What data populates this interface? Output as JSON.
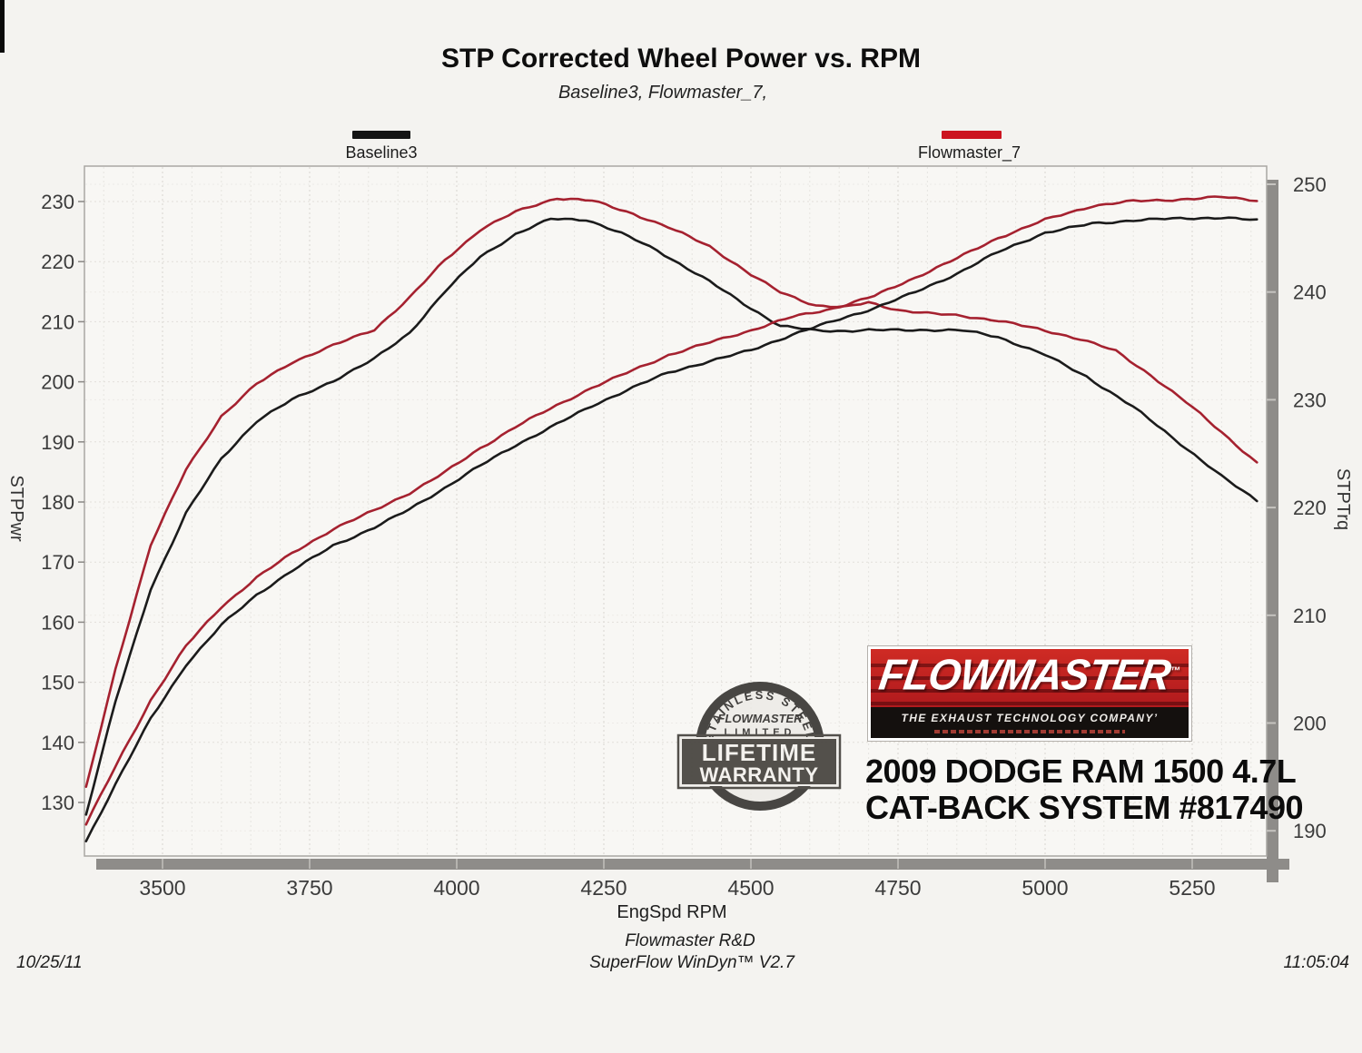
{
  "title": "STP Corrected Wheel Power vs. RPM",
  "subtitle": "Baseline3, Flowmaster_7,",
  "legend": {
    "items": [
      {
        "label": "Baseline3",
        "color": "#141414"
      },
      {
        "label": "Flowmaster_7",
        "color": "#cc1420"
      }
    ]
  },
  "chart_data": {
    "type": "line",
    "title": "STP Corrected Wheel Power vs. RPM",
    "subtitle": "Baseline3, Flowmaster_7,",
    "grid": "dotted",
    "legend_position": "top",
    "x_axis": {
      "label": "EngSpd  RPM",
      "min": 3370,
      "max": 5380,
      "ticks": [
        3500,
        3750,
        4000,
        4250,
        4500,
        4750,
        5000,
        5250
      ],
      "minor_grid_step": 50
    },
    "y_left": {
      "label": "STPPwr",
      "min": 121,
      "max": 236,
      "ticks": [
        130,
        140,
        150,
        160,
        170,
        180,
        190,
        200,
        210,
        220,
        230
      ]
    },
    "y_right": {
      "label": "STPTrq",
      "min": 188,
      "max": 252,
      "ticks": [
        190,
        200,
        210,
        220,
        230,
        240,
        250
      ]
    },
    "series": [
      {
        "id": "baseline3-stptrq",
        "name": "Baseline3 (STPTrq)",
        "axis": "right",
        "color": "#1b1b1b",
        "points": [
          [
            3370,
            191.5
          ],
          [
            3420,
            202
          ],
          [
            3480,
            212.5
          ],
          [
            3540,
            219.5
          ],
          [
            3600,
            224.5
          ],
          [
            3660,
            228
          ],
          [
            3720,
            230
          ],
          [
            3790,
            231.8
          ],
          [
            3860,
            233.8
          ],
          [
            3920,
            236.2
          ],
          [
            3980,
            240
          ],
          [
            4040,
            243.3
          ],
          [
            4100,
            245.4
          ],
          [
            4160,
            246.8
          ],
          [
            4220,
            246.7
          ],
          [
            4280,
            245.4
          ],
          [
            4340,
            243.9
          ],
          [
            4430,
            241
          ],
          [
            4500,
            238.5
          ],
          [
            4550,
            236.8
          ],
          [
            4610,
            236.4
          ],
          [
            4660,
            236.4
          ],
          [
            4700,
            236.5
          ],
          [
            4750,
            236.5
          ],
          [
            4800,
            236.5
          ],
          [
            4860,
            236.4
          ],
          [
            4920,
            235.8
          ],
          [
            5000,
            234.2
          ],
          [
            5070,
            232.2
          ],
          [
            5150,
            229.3
          ],
          [
            5230,
            225.9
          ],
          [
            5300,
            222.9
          ],
          [
            5360,
            220.7
          ]
        ]
      },
      {
        "id": "flowmaster7-stptrq",
        "name": "Flowmaster_7 (STPTrq)",
        "axis": "right",
        "color": "#a5212f",
        "points": [
          [
            3370,
            194
          ],
          [
            3420,
            205
          ],
          [
            3480,
            216.5
          ],
          [
            3540,
            223.5
          ],
          [
            3600,
            228.5
          ],
          [
            3660,
            231.5
          ],
          [
            3720,
            233.5
          ],
          [
            3790,
            235
          ],
          [
            3860,
            236.5
          ],
          [
            3920,
            239.5
          ],
          [
            3980,
            243
          ],
          [
            4040,
            245.8
          ],
          [
            4100,
            247.4
          ],
          [
            4170,
            248.7
          ],
          [
            4230,
            248.5
          ],
          [
            4300,
            247.3
          ],
          [
            4360,
            246
          ],
          [
            4430,
            244.2
          ],
          [
            4500,
            241.6
          ],
          [
            4550,
            240
          ],
          [
            4610,
            238.8
          ],
          [
            4660,
            238.6
          ],
          [
            4700,
            239
          ],
          [
            4750,
            238.3
          ],
          [
            4800,
            238
          ],
          [
            4860,
            237.8
          ],
          [
            4920,
            237.4
          ],
          [
            5000,
            236.4
          ],
          [
            5060,
            235.6
          ],
          [
            5120,
            234.5
          ],
          [
            5180,
            232.3
          ],
          [
            5240,
            229.8
          ],
          [
            5300,
            227
          ],
          [
            5360,
            224.1
          ]
        ]
      },
      {
        "id": "baseline3-stppwr",
        "name": "Baseline3 (STPPwr)",
        "axis": "left",
        "color": "#1b1b1b",
        "points": [
          [
            3370,
            123.5
          ],
          [
            3420,
            133
          ],
          [
            3480,
            144
          ],
          [
            3540,
            153
          ],
          [
            3600,
            159.5
          ],
          [
            3660,
            164.5
          ],
          [
            3720,
            168.5
          ],
          [
            3790,
            172.8
          ],
          [
            3860,
            175.8
          ],
          [
            3920,
            178.8
          ],
          [
            3980,
            182.3
          ],
          [
            4040,
            186
          ],
          [
            4100,
            189.5
          ],
          [
            4170,
            193
          ],
          [
            4230,
            196
          ],
          [
            4300,
            199
          ],
          [
            4360,
            201.5
          ],
          [
            4430,
            203.5
          ],
          [
            4500,
            205.3
          ],
          [
            4570,
            207.8
          ],
          [
            4640,
            210
          ],
          [
            4710,
            212.3
          ],
          [
            4780,
            215
          ],
          [
            4850,
            218
          ],
          [
            4920,
            221.5
          ],
          [
            5000,
            224.8
          ],
          [
            5080,
            226.4
          ],
          [
            5150,
            226.9
          ],
          [
            5230,
            227.1
          ],
          [
            5300,
            227.3
          ],
          [
            5360,
            226.9
          ]
        ]
      },
      {
        "id": "flowmaster7-stppwr",
        "name": "Flowmaster_7 (STPPwr)",
        "axis": "left",
        "color": "#a5212f",
        "points": [
          [
            3370,
            126.5
          ],
          [
            3420,
            136
          ],
          [
            3480,
            147
          ],
          [
            3540,
            156
          ],
          [
            3600,
            162.5
          ],
          [
            3660,
            167.5
          ],
          [
            3720,
            171.5
          ],
          [
            3790,
            175.5
          ],
          [
            3860,
            178.5
          ],
          [
            3920,
            181.5
          ],
          [
            3980,
            185
          ],
          [
            4040,
            189
          ],
          [
            4100,
            192.5
          ],
          [
            4170,
            196
          ],
          [
            4230,
            199
          ],
          [
            4300,
            202
          ],
          [
            4360,
            204.5
          ],
          [
            4430,
            206.5
          ],
          [
            4500,
            208.5
          ],
          [
            4570,
            210.8
          ],
          [
            4640,
            212.3
          ],
          [
            4710,
            214.3
          ],
          [
            4780,
            217.3
          ],
          [
            4850,
            220.5
          ],
          [
            4920,
            224
          ],
          [
            5000,
            227
          ],
          [
            5080,
            229.2
          ],
          [
            5150,
            230
          ],
          [
            5230,
            230.4
          ],
          [
            5300,
            230.8
          ],
          [
            5360,
            230.2
          ]
        ]
      }
    ]
  },
  "branding": {
    "logo": {
      "name": "FLOWMASTER",
      "tm": "™",
      "tagline": "THE EXHAUST TECHNOLOGY COMPANY’"
    },
    "badge": {
      "arc_text": "STAINLESS STEEL",
      "brand": "FLOWMASTER",
      "line1": "LIMITED",
      "line2": "LIFETIME",
      "line3": "WARRANTY"
    },
    "vehicle_line1": "2009 DODGE RAM 1500 4.7L",
    "vehicle_line2": "CAT-BACK SYSTEM #817490"
  },
  "footer": {
    "lab": "Flowmaster R&D",
    "software": "SuperFlow WinDyn™ V2.7",
    "date": "10/25/11",
    "time": "11:05:04"
  }
}
